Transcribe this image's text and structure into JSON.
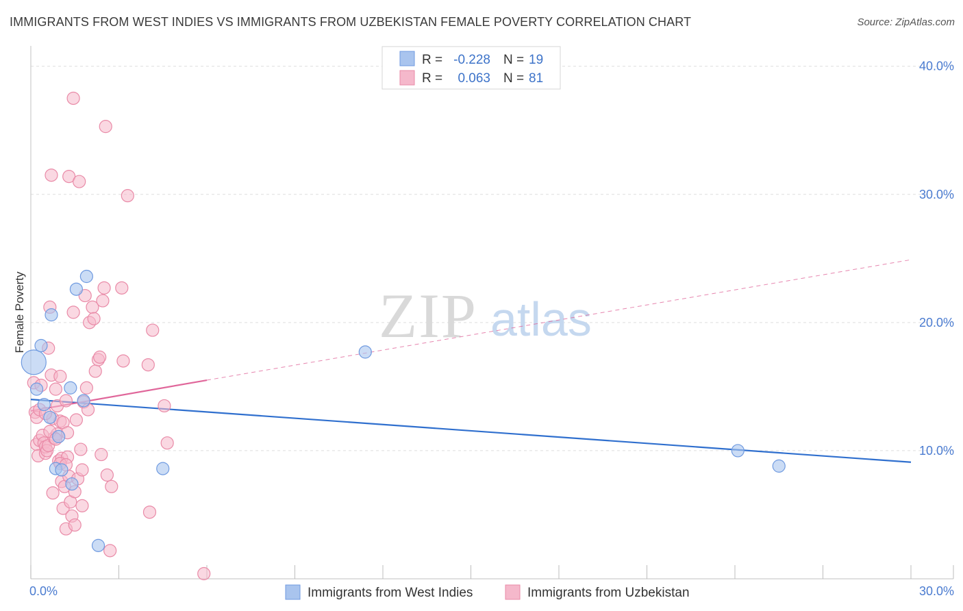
{
  "header": {
    "title": "IMMIGRANTS FROM WEST INDIES VS IMMIGRANTS FROM UZBEKISTAN FEMALE POVERTY CORRELATION CHART",
    "source": "Source: ZipAtlas.com"
  },
  "watermark": {
    "zip": "ZIP",
    "atlas": "atlas"
  },
  "legend": {
    "rows": [
      {
        "r_label": "R =",
        "r_value": "-0.228",
        "n_label": "N =",
        "n_value": "19"
      },
      {
        "r_label": "R =",
        "r_value": "0.063",
        "n_label": "N =",
        "n_value": "81"
      }
    ]
  },
  "bottom_legend": {
    "series1": "Immigrants from West Indies",
    "series2": "Immigrants from Uzbekistan"
  },
  "colors": {
    "blue_fill": "#a9c4ee",
    "blue_stroke": "#6f9ae0",
    "blue_line": "#2f6fce",
    "pink_fill": "#f5b8cb",
    "pink_stroke": "#e98aa7",
    "pink_line": "#e0669a",
    "grid": "#dddddd"
  },
  "chart_data": {
    "type": "scatter",
    "title": "IMMIGRANTS FROM WEST INDIES VS IMMIGRANTS FROM UZBEKISTAN FEMALE POVERTY CORRELATION CHART",
    "xlabel": "",
    "ylabel": "Female Poverty",
    "xlim": [
      0,
      30
    ],
    "ylim": [
      0,
      41
    ],
    "x_tick_labels": [
      "0.0%",
      "30.0%"
    ],
    "y_ticks": [
      10,
      20,
      30,
      40
    ],
    "y_tick_labels": [
      "10.0%",
      "20.0%",
      "30.0%",
      "40.0%"
    ],
    "grid": true,
    "series": [
      {
        "name": "Immigrants from West Indies",
        "r": -0.228,
        "n": 19,
        "trend": {
          "x0": 0,
          "y0": 14.0,
          "x1": 30,
          "y1": 9.1
        },
        "points": [
          [
            0.1,
            16.9,
            18
          ],
          [
            0.2,
            14.8,
            9
          ],
          [
            0.35,
            18.2,
            9
          ],
          [
            0.45,
            13.6,
            9
          ],
          [
            0.65,
            12.6,
            9
          ],
          [
            0.7,
            20.6,
            9
          ],
          [
            0.85,
            8.6,
            9
          ],
          [
            0.95,
            11.1,
            9
          ],
          [
            1.05,
            8.5,
            9
          ],
          [
            1.35,
            14.9,
            9
          ],
          [
            1.4,
            7.4,
            9
          ],
          [
            1.55,
            22.6,
            9
          ],
          [
            1.8,
            13.9,
            9
          ],
          [
            1.9,
            23.6,
            9
          ],
          [
            2.3,
            2.6,
            9
          ],
          [
            4.5,
            8.6,
            9
          ],
          [
            11.4,
            17.7,
            9
          ],
          [
            24.1,
            10.0,
            9
          ],
          [
            25.5,
            8.8,
            9
          ]
        ]
      },
      {
        "name": "Immigrants from Uzbekistan",
        "r": 0.063,
        "n": 81,
        "trend_solid": {
          "x0": 0,
          "y0": 13.1,
          "x1": 6.0,
          "y1": 15.5
        },
        "trend_dashed": {
          "x0": 6.0,
          "y0": 15.5,
          "x1": 30,
          "y1": 24.9
        },
        "points": [
          [
            0.1,
            15.3
          ],
          [
            0.15,
            13.0
          ],
          [
            0.2,
            12.6
          ],
          [
            0.2,
            10.5
          ],
          [
            0.25,
            9.6
          ],
          [
            0.3,
            10.8
          ],
          [
            0.35,
            15.1
          ],
          [
            0.4,
            11.2
          ],
          [
            0.45,
            10.6
          ],
          [
            0.5,
            9.8
          ],
          [
            0.5,
            10.3
          ],
          [
            0.55,
            10.0
          ],
          [
            0.6,
            18.0
          ],
          [
            0.6,
            10.4
          ],
          [
            0.65,
            21.2
          ],
          [
            0.7,
            15.9
          ],
          [
            0.7,
            31.5
          ],
          [
            0.75,
            12.5
          ],
          [
            0.75,
            6.7
          ],
          [
            0.8,
            11.0
          ],
          [
            0.85,
            14.8
          ],
          [
            0.9,
            13.5
          ],
          [
            0.9,
            11.3
          ],
          [
            0.95,
            9.2
          ],
          [
            1.0,
            15.8
          ],
          [
            1.0,
            12.3
          ],
          [
            1.05,
            9.4
          ],
          [
            1.05,
            7.6
          ],
          [
            1.1,
            12.2
          ],
          [
            1.1,
            5.5
          ],
          [
            1.15,
            7.2
          ],
          [
            1.2,
            13.9
          ],
          [
            1.2,
            3.9
          ],
          [
            1.25,
            11.4
          ],
          [
            1.25,
            9.5
          ],
          [
            1.3,
            31.4
          ],
          [
            1.3,
            8.0
          ],
          [
            1.35,
            6.0
          ],
          [
            1.4,
            4.9
          ],
          [
            1.45,
            37.5
          ],
          [
            1.45,
            20.8
          ],
          [
            1.5,
            6.8
          ],
          [
            1.5,
            4.2
          ],
          [
            1.55,
            12.4
          ],
          [
            1.6,
            7.8
          ],
          [
            1.65,
            31.0
          ],
          [
            1.7,
            10.1
          ],
          [
            1.75,
            8.5
          ],
          [
            1.75,
            5.7
          ],
          [
            1.8,
            13.8
          ],
          [
            1.85,
            22.1
          ],
          [
            1.9,
            14.9
          ],
          [
            1.95,
            13.2
          ],
          [
            2.0,
            20.0
          ],
          [
            2.1,
            21.2
          ],
          [
            2.15,
            20.3
          ],
          [
            2.2,
            16.2
          ],
          [
            2.3,
            17.1
          ],
          [
            2.35,
            17.3
          ],
          [
            2.4,
            9.7
          ],
          [
            2.45,
            21.7
          ],
          [
            2.5,
            22.7
          ],
          [
            2.55,
            35.3
          ],
          [
            2.6,
            8.1
          ],
          [
            2.7,
            2.2
          ],
          [
            2.75,
            7.2
          ],
          [
            3.1,
            22.7
          ],
          [
            3.15,
            17.0
          ],
          [
            3.3,
            29.9
          ],
          [
            4.0,
            16.7
          ],
          [
            4.05,
            5.2
          ],
          [
            4.15,
            19.4
          ],
          [
            4.55,
            13.5
          ],
          [
            4.65,
            10.6
          ],
          [
            5.9,
            0.4
          ],
          [
            0.3,
            13.2
          ],
          [
            0.5,
            12.9
          ],
          [
            0.65,
            11.5
          ],
          [
            0.85,
            10.9
          ],
          [
            1.0,
            9.0
          ],
          [
            1.2,
            8.9
          ]
        ]
      }
    ]
  }
}
